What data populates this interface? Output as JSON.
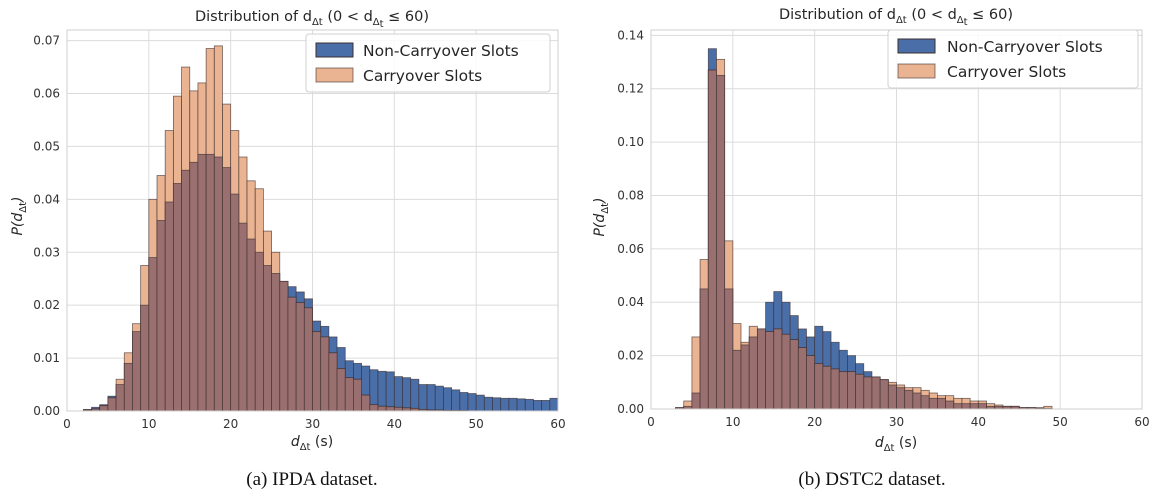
{
  "colors": {
    "non_carryover": "#4a6ea8",
    "carryover": "#eab391",
    "overlap": "#9a6f6f",
    "edge": "#3a2e2e"
  },
  "chart_data": [
    {
      "type": "bar",
      "title": "Distribution of d",
      "title_sub": "Δt",
      "title_range_pre": " (0 < d",
      "title_range_sub": "Δ",
      "title_range_subsub": "t",
      "title_range_post": " ≤ 60)",
      "xlabel": "d",
      "xlabel_sub": "Δt",
      "xlabel_unit": " (s)",
      "ylabel": "P(d",
      "ylabel_sub": "Δt",
      "ylabel_post": ")",
      "xlim": [
        0,
        60
      ],
      "ylim": [
        0,
        0.072
      ],
      "xticks": [
        "0",
        "10",
        "20",
        "30",
        "40",
        "50",
        "60"
      ],
      "yticks": [
        "0.00",
        "0.01",
        "0.02",
        "0.03",
        "0.04",
        "0.05",
        "0.06",
        "0.07"
      ],
      "bin_start": 0,
      "bin_width": 1,
      "legend_position": "top-right",
      "series": [
        {
          "name": "Non-Carryover Slots",
          "values": [
            0,
            0,
            0.0003,
            0.0007,
            0.0012,
            0.0028,
            0.005,
            0.009,
            0.015,
            0.02,
            0.029,
            0.036,
            0.0395,
            0.043,
            0.0455,
            0.047,
            0.0485,
            0.0485,
            0.048,
            0.046,
            0.041,
            0.0355,
            0.0325,
            0.03,
            0.0275,
            0.026,
            0.0245,
            0.0235,
            0.0225,
            0.0212,
            0.017,
            0.016,
            0.014,
            0.012,
            0.0095,
            0.009,
            0.0085,
            0.0078,
            0.0075,
            0.0074,
            0.0065,
            0.0063,
            0.006,
            0.005,
            0.005,
            0.0047,
            0.0044,
            0.004,
            0.0035,
            0.0033,
            0.003,
            0.0026,
            0.0025,
            0.0024,
            0.0024,
            0.0023,
            0.0022,
            0.002,
            0.002,
            0.0024
          ]
        },
        {
          "name": "Carryover Slots",
          "values": [
            0,
            0,
            0.0002,
            0.0004,
            0.001,
            0.0025,
            0.006,
            0.011,
            0.0165,
            0.0275,
            0.04,
            0.0445,
            0.053,
            0.0595,
            0.065,
            0.0605,
            0.062,
            0.0685,
            0.069,
            0.058,
            0.053,
            0.048,
            0.0435,
            0.042,
            0.034,
            0.03,
            0.0245,
            0.0215,
            0.0205,
            0.0195,
            0.015,
            0.014,
            0.011,
            0.008,
            0.0063,
            0.006,
            0.003,
            0.0012,
            0.0009,
            0.0008,
            0.0007,
            0.0006,
            0.0005,
            0.0003,
            0.0002,
            0.0002,
            0.0001,
            0.0001,
            0.0001,
            0,
            0,
            0,
            0,
            0,
            0,
            0,
            0,
            0,
            0,
            0
          ]
        }
      ]
    },
    {
      "type": "bar",
      "title": "Distribution of d",
      "title_sub": "Δt",
      "title_range_pre": " (0 < d",
      "title_range_sub": "Δ",
      "title_range_subsub": "t",
      "title_range_post": " ≤ 60)",
      "xlabel": "d",
      "xlabel_sub": "Δt",
      "xlabel_unit": " (s)",
      "ylabel": "P(d",
      "ylabel_sub": "Δt",
      "ylabel_post": ")",
      "xlim": [
        0,
        60
      ],
      "ylim": [
        0,
        0.142
      ],
      "xticks": [
        "0",
        "10",
        "20",
        "30",
        "40",
        "50",
        "60"
      ],
      "yticks": [
        "0.00",
        "0.02",
        "0.04",
        "0.06",
        "0.08",
        "0.10",
        "0.12",
        "0.14"
      ],
      "bin_start": 0,
      "bin_width": 1,
      "legend_position": "top-right",
      "series": [
        {
          "name": "Non-Carryover Slots",
          "values": [
            0,
            0,
            0,
            0.0005,
            0.001,
            0.006,
            0.045,
            0.135,
            0.125,
            0.045,
            0.022,
            0.024,
            0.027,
            0.03,
            0.04,
            0.044,
            0.04,
            0.035,
            0.03,
            0.027,
            0.031,
            0.029,
            0.025,
            0.022,
            0.02,
            0.017,
            0.014,
            0.012,
            0.011,
            0.009,
            0.008,
            0.007,
            0.006,
            0.005,
            0.004,
            0.004,
            0.003,
            0.002,
            0.002,
            0.002,
            0.002,
            0.001,
            0.001,
            0.001,
            0.001,
            0.0005,
            0.0005,
            0.0003,
            0.0002,
            0,
            0,
            0,
            0,
            0,
            0,
            0,
            0,
            0,
            0,
            0
          ]
        },
        {
          "name": "Carryover Slots",
          "values": [
            0,
            0,
            0,
            0.0005,
            0.003,
            0.027,
            0.056,
            0.127,
            0.131,
            0.063,
            0.032,
            0.025,
            0.031,
            0.03,
            0.029,
            0.03,
            0.028,
            0.026,
            0.023,
            0.02,
            0.017,
            0.016,
            0.015,
            0.014,
            0.014,
            0.013,
            0.012,
            0.012,
            0.011,
            0.01,
            0.009,
            0.008,
            0.008,
            0.007,
            0.006,
            0.005,
            0.005,
            0.004,
            0.004,
            0.003,
            0.003,
            0.002,
            0.0015,
            0.001,
            0.001,
            0.0005,
            0.0005,
            0.0005,
            0.001,
            0,
            0,
            0,
            0,
            0,
            0,
            0,
            0,
            0,
            0,
            0
          ]
        }
      ]
    }
  ],
  "captions": [
    "(a)  IPDA dataset.",
    "(b)  DSTC2 dataset."
  ]
}
